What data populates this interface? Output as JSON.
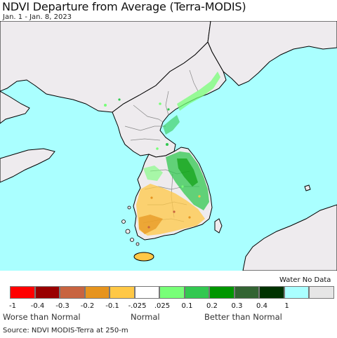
{
  "header": {
    "title": "NDVI Departure from Average (Terra-MODIS)",
    "date_range": "Jan. 1 - Jan. 8, 2023"
  },
  "map": {
    "colors": {
      "water": "#aaffff",
      "land_no_data": "#eeebee",
      "border": "#000000",
      "admin_border": "#888888"
    }
  },
  "legend": {
    "water_label": "Water",
    "no_data_label": "No Data",
    "swatches": [
      {
        "color": "#ff0000"
      },
      {
        "color": "#990000"
      },
      {
        "color": "#c86440"
      },
      {
        "color": "#e6941e"
      },
      {
        "color": "#ffc846"
      },
      {
        "color": "#ffffff"
      },
      {
        "color": "#78ff78"
      },
      {
        "color": "#32c850"
      },
      {
        "color": "#009600"
      },
      {
        "color": "#326432"
      },
      {
        "color": "#003200"
      },
      {
        "color": "#aaffff"
      },
      {
        "color": "#e6e6e6"
      }
    ],
    "ticks": [
      "-1",
      "-0.4",
      "-0.3",
      "-0.2",
      "-0.1",
      "-.025",
      ".025",
      "0.1",
      "0.2",
      "0.3",
      "0.4",
      "1"
    ],
    "categories": {
      "worse": "Worse than Normal",
      "normal": "Normal",
      "better": "Better than Normal"
    }
  },
  "footer": {
    "source": "Source: NDVI MODIS-Terra at 250-m"
  }
}
